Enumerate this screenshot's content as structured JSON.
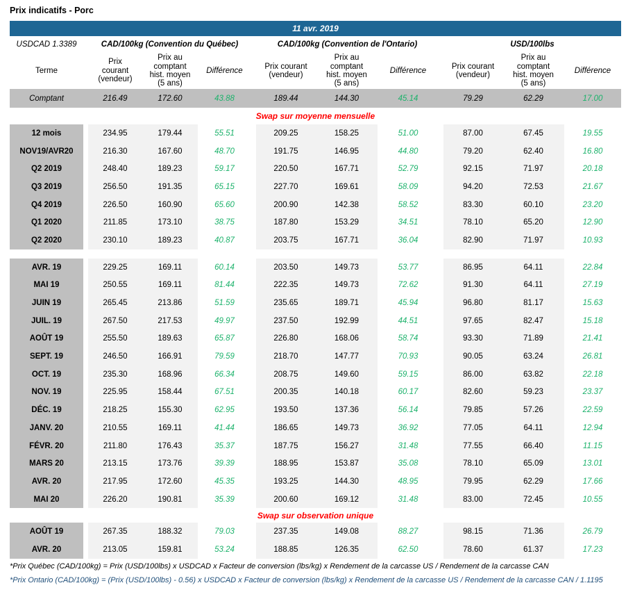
{
  "title": "Prix indicatifs - Porc",
  "date_banner": "11 avr. 2019",
  "usdcad_label": "USDCAD 1.3389",
  "colors": {
    "banner_blue": "#1E6694",
    "label_gray": "#BFBFBF",
    "cell_gray": "#F2F2F2",
    "difference_green": "#1CB26B",
    "section_red": "#FF0000",
    "footnote_blue": "#1F4E79"
  },
  "groups": [
    {
      "label": "CAD/100kg (Convention du Québec)"
    },
    {
      "label": "CAD/100kg (Convention de l'Ontario)"
    },
    {
      "label": "USD/100lbs"
    }
  ],
  "column_headers": {
    "terme": "Terme",
    "quebec_courant": "Prix\ncourant\n(vendeur)",
    "quebec_comptant": "Prix au\ncomptant\nhist. moyen\n(5 ans)",
    "quebec_difference": "Différence",
    "ontario_courant": "Prix courant\n(vendeur)",
    "ontario_comptant": "Prix au\ncomptant\nhist. moyen\n(5 ans)",
    "ontario_difference": "Différence",
    "usd_courant": "Prix courant\n(vendeur)",
    "usd_comptant": "Prix au\ncomptant\nhist. moyen\n(5 ans)",
    "usd_difference": "Différence"
  },
  "table": {
    "sections": [
      {
        "kind": "spot",
        "row": {
          "label": "Comptant",
          "values": [
            "216.49",
            "172.60",
            "43.88",
            "189.44",
            "144.30",
            "45.14",
            "79.29",
            "62.29",
            "17.00"
          ]
        }
      },
      {
        "kind": "header",
        "label": "Swap sur moyenne mensuelle",
        "style": "normal"
      },
      {
        "kind": "rows",
        "id": "swap-mensuelle-periodes",
        "rows": [
          {
            "label": "12 mois",
            "values": [
              "234.95",
              "179.44",
              "55.51",
              "209.25",
              "158.25",
              "51.00",
              "87.00",
              "67.45",
              "19.55"
            ]
          },
          {
            "label": "NOV19/AVR20",
            "values": [
              "216.30",
              "167.60",
              "48.70",
              "191.75",
              "146.95",
              "44.80",
              "79.20",
              "62.40",
              "16.80"
            ]
          },
          {
            "label": "Q2 2019",
            "values": [
              "248.40",
              "189.23",
              "59.17",
              "220.50",
              "167.71",
              "52.79",
              "92.15",
              "71.97",
              "20.18"
            ]
          },
          {
            "label": "Q3 2019",
            "values": [
              "256.50",
              "191.35",
              "65.15",
              "227.70",
              "169.61",
              "58.09",
              "94.20",
              "72.53",
              "21.67"
            ]
          },
          {
            "label": "Q4 2019",
            "values": [
              "226.50",
              "160.90",
              "65.60",
              "200.90",
              "142.38",
              "58.52",
              "83.30",
              "60.10",
              "23.20"
            ]
          },
          {
            "label": "Q1 2020",
            "values": [
              "211.85",
              "173.10",
              "38.75",
              "187.80",
              "153.29",
              "34.51",
              "78.10",
              "65.20",
              "12.90"
            ]
          },
          {
            "label": "Q2 2020",
            "values": [
              "230.10",
              "189.23",
              "40.87",
              "203.75",
              "167.71",
              "36.04",
              "82.90",
              "71.97",
              "10.93"
            ]
          }
        ]
      },
      {
        "kind": "spacer"
      },
      {
        "kind": "rows",
        "id": "swap-mensuelle-mois",
        "rows": [
          {
            "label": "AVR. 19",
            "values": [
              "229.25",
              "169.11",
              "60.14",
              "203.50",
              "149.73",
              "53.77",
              "86.95",
              "64.11",
              "22.84"
            ]
          },
          {
            "label": "MAI 19",
            "values": [
              "250.55",
              "169.11",
              "81.44",
              "222.35",
              "149.73",
              "72.62",
              "91.30",
              "64.11",
              "27.19"
            ]
          },
          {
            "label": "JUIN 19",
            "values": [
              "265.45",
              "213.86",
              "51.59",
              "235.65",
              "189.71",
              "45.94",
              "96.80",
              "81.17",
              "15.63"
            ]
          },
          {
            "label": "JUIL. 19",
            "values": [
              "267.50",
              "217.53",
              "49.97",
              "237.50",
              "192.99",
              "44.51",
              "97.65",
              "82.47",
              "15.18"
            ]
          },
          {
            "label": "AOÛT 19",
            "values": [
              "255.50",
              "189.63",
              "65.87",
              "226.80",
              "168.06",
              "58.74",
              "93.30",
              "71.89",
              "21.41"
            ]
          },
          {
            "label": "SEPT. 19",
            "values": [
              "246.50",
              "166.91",
              "79.59",
              "218.70",
              "147.77",
              "70.93",
              "90.05",
              "63.24",
              "26.81"
            ]
          },
          {
            "label": "OCT. 19",
            "values": [
              "235.30",
              "168.96",
              "66.34",
              "208.75",
              "149.60",
              "59.15",
              "86.00",
              "63.82",
              "22.18"
            ]
          },
          {
            "label": "NOV. 19",
            "values": [
              "225.95",
              "158.44",
              "67.51",
              "200.35",
              "140.18",
              "60.17",
              "82.60",
              "59.23",
              "23.37"
            ]
          },
          {
            "label": "DÉC. 19",
            "values": [
              "218.25",
              "155.30",
              "62.95",
              "193.50",
              "137.36",
              "56.14",
              "79.85",
              "57.26",
              "22.59"
            ]
          },
          {
            "label": "JANV. 20",
            "values": [
              "210.55",
              "169.11",
              "41.44",
              "186.65",
              "149.73",
              "36.92",
              "77.05",
              "64.11",
              "12.94"
            ]
          },
          {
            "label": "FÉVR. 20",
            "values": [
              "211.80",
              "176.43",
              "35.37",
              "187.75",
              "156.27",
              "31.48",
              "77.55",
              "66.40",
              "11.15"
            ]
          },
          {
            "label": "MARS 20",
            "values": [
              "213.15",
              "173.76",
              "39.39",
              "188.95",
              "153.87",
              "35.08",
              "78.10",
              "65.09",
              "13.01"
            ]
          },
          {
            "label": "AVR. 20",
            "values": [
              "217.95",
              "172.60",
              "45.35",
              "193.25",
              "144.30",
              "48.95",
              "79.95",
              "62.29",
              "17.66"
            ]
          },
          {
            "label": "MAI 20",
            "values": [
              "226.20",
              "190.81",
              "35.39",
              "200.60",
              "169.12",
              "31.48",
              "83.00",
              "72.45",
              "10.55"
            ]
          }
        ]
      },
      {
        "kind": "header",
        "label": "Swap sur observation unique",
        "style": "tight"
      },
      {
        "kind": "rows",
        "id": "swap-observation-unique",
        "rows": [
          {
            "label": "AOÛT 19",
            "values": [
              "267.35",
              "188.32",
              "79.03",
              "237.35",
              "149.08",
              "88.27",
              "98.15",
              "71.36",
              "26.79"
            ]
          },
          {
            "label": "AVR. 20",
            "values": [
              "213.05",
              "159.81",
              "53.24",
              "188.85",
              "126.35",
              "62.50",
              "78.60",
              "61.37",
              "17.23"
            ]
          }
        ]
      }
    ]
  },
  "footnotes": [
    "*Prix Québec (CAD/100kg) = Prix (USD/100lbs) x USDCAD x Facteur de conversion (lbs/kg) x Rendement de la carcasse US / Rendement de la carcasse CAN",
    "*Prix Ontario (CAD/100kg) = (Prix (USD/100lbs) - 0.56) x USDCAD x Facteur de conversion (lbs/kg) x Rendement de la carcasse US / Rendement de la carcasse CAN / 1.1195"
  ]
}
